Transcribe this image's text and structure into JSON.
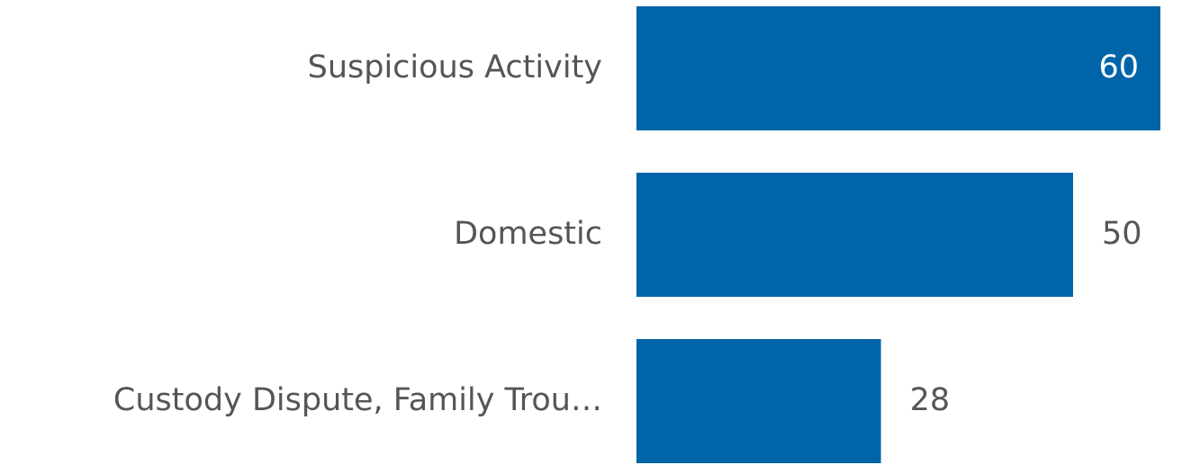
{
  "chart_data": {
    "type": "hbar",
    "categories": [
      "Suspicious Activity",
      "Domestic",
      "Custody Dispute, Family Trou…"
    ],
    "values": [
      60,
      50,
      28
    ],
    "color": "#0064a8",
    "xlim": [
      0,
      60
    ]
  }
}
